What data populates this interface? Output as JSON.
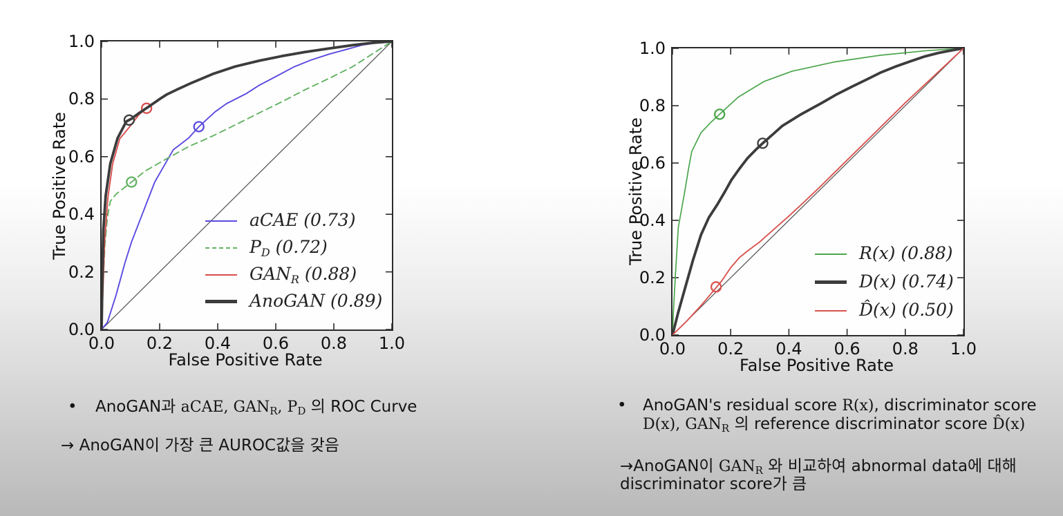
{
  "slide": {
    "background_top": "#ffffff",
    "background_bottom": "#b9b9b9",
    "plot_face_color": "#fefefe",
    "spine_color": "#2b2b2b",
    "tick_color": "#2b2b2b"
  },
  "chart_data": [
    {
      "type": "line",
      "title": "",
      "xlabel": "False Positive Rate",
      "ylabel": "True Positive Rate",
      "xlim": [
        0.0,
        1.0
      ],
      "ylim": [
        0.0,
        1.0
      ],
      "xticks": [
        "0.0",
        "0.2",
        "0.4",
        "0.6",
        "0.8",
        "1.0"
      ],
      "yticks": [
        "1.0",
        "0.8",
        "0.6",
        "0.4",
        "0.2",
        "0.0"
      ],
      "grid": false,
      "legend_position": "center right",
      "diagonal": {
        "color": "#5a5a5a",
        "width": 1.3
      },
      "series": [
        {
          "id": "aCAE",
          "legend": {
            "pre": "aCAE",
            "sub": "",
            "post": " (0.73)"
          },
          "auc": 0.73,
          "color": "#5a4ae0",
          "dash": false,
          "width": 1.9,
          "marker": [
            0.335,
            0.704
          ],
          "points": [
            [
              0,
              0
            ],
            [
              0.02,
              0.025
            ],
            [
              0.05,
              0.12
            ],
            [
              0.08,
              0.23
            ],
            [
              0.103,
              0.304
            ],
            [
              0.14,
              0.4
            ],
            [
              0.183,
              0.512
            ],
            [
              0.247,
              0.624
            ],
            [
              0.3,
              0.665
            ],
            [
              0.335,
              0.704
            ],
            [
              0.39,
              0.755
            ],
            [
              0.43,
              0.784
            ],
            [
              0.5,
              0.82
            ],
            [
              0.543,
              0.848
            ],
            [
              0.6,
              0.878
            ],
            [
              0.663,
              0.912
            ],
            [
              0.72,
              0.935
            ],
            [
              0.784,
              0.956
            ],
            [
              0.85,
              0.974
            ],
            [
              0.9,
              0.988
            ],
            [
              0.95,
              0.995
            ],
            [
              1,
              1
            ]
          ]
        },
        {
          "id": "PD",
          "legend": {
            "pre": "P",
            "sub": "D",
            "post": " (0.72)"
          },
          "auc": 0.72,
          "color": "#63b263",
          "dash": true,
          "width": 1.9,
          "marker": [
            0.103,
            0.512
          ],
          "points": [
            [
              0,
              0
            ],
            [
              0.005,
              0.16
            ],
            [
              0.012,
              0.3
            ],
            [
              0.02,
              0.39
            ],
            [
              0.03,
              0.445
            ],
            [
              0.05,
              0.47
            ],
            [
              0.075,
              0.49
            ],
            [
              0.103,
              0.512
            ],
            [
              0.15,
              0.55
            ],
            [
              0.223,
              0.592
            ],
            [
              0.3,
              0.635
            ],
            [
              0.383,
              0.672
            ],
            [
              0.46,
              0.71
            ],
            [
              0.543,
              0.752
            ],
            [
              0.62,
              0.79
            ],
            [
              0.7,
              0.832
            ],
            [
              0.78,
              0.87
            ],
            [
              0.864,
              0.912
            ],
            [
              0.93,
              0.955
            ],
            [
              1,
              1
            ]
          ]
        },
        {
          "id": "GANR",
          "legend": {
            "pre": "GAN",
            "sub": "R",
            "post": " (0.88)"
          },
          "auc": 0.88,
          "color": "#d94f4f",
          "dash": false,
          "width": 1.9,
          "marker": [
            0.155,
            0.768
          ],
          "points": [
            [
              0,
              0
            ],
            [
              0.005,
              0.14
            ],
            [
              0.01,
              0.3
            ],
            [
              0.022,
              0.46
            ],
            [
              0.038,
              0.575
            ],
            [
              0.0625,
              0.662
            ],
            [
              0.103,
              0.712
            ],
            [
              0.128,
              0.745
            ],
            [
              0.155,
              0.768
            ],
            [
              0.19,
              0.795
            ],
            [
              0.223,
              0.815
            ],
            [
              0.26,
              0.833
            ],
            [
              0.303,
              0.853
            ],
            [
              0.383,
              0.887
            ],
            [
              0.46,
              0.913
            ],
            [
              0.543,
              0.933
            ],
            [
              0.62,
              0.949
            ],
            [
              0.7,
              0.963
            ],
            [
              0.78,
              0.975
            ],
            [
              0.864,
              0.987
            ],
            [
              0.93,
              0.995
            ],
            [
              1,
              1
            ]
          ]
        },
        {
          "id": "AnoGAN",
          "legend": {
            "pre": "AnoGAN",
            "sub": "",
            "post": " (0.89)"
          },
          "auc": 0.89,
          "color": "#3c3c3c",
          "dash": false,
          "width": 3.8,
          "marker": [
            0.095,
            0.727
          ],
          "points": [
            [
              0,
              0
            ],
            [
              0.003,
              0.2
            ],
            [
              0.006,
              0.344
            ],
            [
              0.014,
              0.464
            ],
            [
              0.03,
              0.576
            ],
            [
              0.055,
              0.664
            ],
            [
              0.085,
              0.722
            ],
            [
              0.103,
              0.732
            ],
            [
              0.13,
              0.752
            ],
            [
              0.16,
              0.772
            ],
            [
              0.2,
              0.8
            ],
            [
              0.223,
              0.815
            ],
            [
              0.26,
              0.833
            ],
            [
              0.303,
              0.853
            ],
            [
              0.383,
              0.887
            ],
            [
              0.46,
              0.913
            ],
            [
              0.543,
              0.933
            ],
            [
              0.62,
              0.949
            ],
            [
              0.7,
              0.963
            ],
            [
              0.78,
              0.975
            ],
            [
              0.864,
              0.987
            ],
            [
              0.93,
              0.995
            ],
            [
              1,
              1
            ]
          ]
        }
      ]
    },
    {
      "type": "line",
      "title": "",
      "xlabel": "False Positive Rate",
      "ylabel": "True Positive Rate",
      "xlim": [
        0.0,
        1.0
      ],
      "ylim": [
        0.0,
        1.0
      ],
      "xticks": [
        "0.0",
        "0.2",
        "0.4",
        "0.6",
        "0.8",
        "1.0"
      ],
      "yticks": [
        "1.0",
        "0.8",
        "0.6",
        "0.4",
        "0.2",
        "0.0"
      ],
      "grid": false,
      "legend_position": "lower right",
      "diagonal": {
        "color": "#5a5a5a",
        "width": 1.3
      },
      "series": [
        {
          "id": "Rx",
          "legend": {
            "pre": "R(x)",
            "sub": "",
            "post": " (0.88)"
          },
          "auc": 0.88,
          "color": "#4aa54a",
          "dash": false,
          "width": 1.7,
          "marker": [
            0.162,
            0.77
          ],
          "points": [
            [
              0,
              0
            ],
            [
              0.003,
              0.08
            ],
            [
              0.01,
              0.21
            ],
            [
              0.02,
              0.375
            ],
            [
              0.042,
              0.5
            ],
            [
              0.055,
              0.58
            ],
            [
              0.066,
              0.64
            ],
            [
              0.098,
              0.706
            ],
            [
              0.13,
              0.74
            ],
            [
              0.162,
              0.77
            ],
            [
              0.226,
              0.83
            ],
            [
              0.314,
              0.884
            ],
            [
              0.41,
              0.92
            ],
            [
              0.554,
              0.952
            ],
            [
              0.714,
              0.976
            ],
            [
              0.874,
              0.992
            ],
            [
              1,
              1
            ]
          ]
        },
        {
          "id": "Dx",
          "legend": {
            "pre": "D(x)",
            "sub": "",
            "post": " (0.74)"
          },
          "auc": 0.74,
          "color": "#3c3c3c",
          "dash": false,
          "width": 3.8,
          "marker": [
            0.31,
            0.669
          ],
          "points": [
            [
              0,
              0
            ],
            [
              0.02,
              0.08
            ],
            [
              0.046,
              0.174
            ],
            [
              0.07,
              0.26
            ],
            [
              0.098,
              0.35
            ],
            [
              0.125,
              0.41
            ],
            [
              0.154,
              0.455
            ],
            [
              0.18,
              0.5
            ],
            [
              0.202,
              0.54
            ],
            [
              0.23,
              0.58
            ],
            [
              0.258,
              0.617
            ],
            [
              0.285,
              0.645
            ],
            [
              0.31,
              0.669
            ],
            [
              0.345,
              0.7
            ],
            [
              0.378,
              0.73
            ],
            [
              0.442,
              0.77
            ],
            [
              0.514,
              0.81
            ],
            [
              0.565,
              0.84
            ],
            [
              0.618,
              0.867
            ],
            [
              0.665,
              0.89
            ],
            [
              0.714,
              0.915
            ],
            [
              0.765,
              0.936
            ],
            [
              0.818,
              0.955
            ],
            [
              0.868,
              0.972
            ],
            [
              0.914,
              0.984
            ],
            [
              0.96,
              0.993
            ],
            [
              1,
              1
            ]
          ]
        },
        {
          "id": "Dhatx",
          "legend": {
            "pre": "D̂(x)",
            "sub": "",
            "post": " (0.50)"
          },
          "auc": 0.5,
          "color": "#d9534f",
          "dash": false,
          "width": 1.9,
          "marker": [
            0.15,
            0.168
          ],
          "points": [
            [
              0,
              0
            ],
            [
              0.05,
              0.05
            ],
            [
              0.1,
              0.105
            ],
            [
              0.15,
              0.165
            ],
            [
              0.17,
              0.19
            ],
            [
              0.2,
              0.235
            ],
            [
              0.23,
              0.27
            ],
            [
              0.26,
              0.295
            ],
            [
              0.3,
              0.325
            ],
            [
              0.35,
              0.37
            ],
            [
              0.4,
              0.415
            ],
            [
              0.45,
              0.462
            ],
            [
              0.5,
              0.51
            ],
            [
              0.6,
              0.61
            ],
            [
              0.7,
              0.71
            ],
            [
              0.8,
              0.81
            ],
            [
              0.9,
              0.905
            ],
            [
              1,
              1
            ]
          ]
        }
      ]
    }
  ],
  "captions": {
    "left": {
      "bullet": "•",
      "line1": {
        "p1": "AnoGAN과 ",
        "p2": "aCAE, GAN",
        "s1": "R",
        "p3": ", P",
        "s2": "D",
        "p4": " 의 ROC Curve"
      },
      "line2": "→ AnoGAN이 가장 큰 AUROC값을 갖음"
    },
    "right": {
      "bullet": "•",
      "line1": {
        "p1": "AnoGAN's residual score ",
        "p2": "R(x)",
        "p3": ", discriminator score"
      },
      "line2": {
        "p1": "D(x)",
        "p2": ", GAN",
        "s1": "R",
        "p3": " 의 reference discriminator score ",
        "p4": "D̂(x)"
      },
      "line3": {
        "p1": "→AnoGAN이 ",
        "p2": "GAN",
        "s1": "R",
        "p3": " 와 비교하여 abnormal data에 대해"
      },
      "line4": "discriminator score가 큼"
    }
  }
}
